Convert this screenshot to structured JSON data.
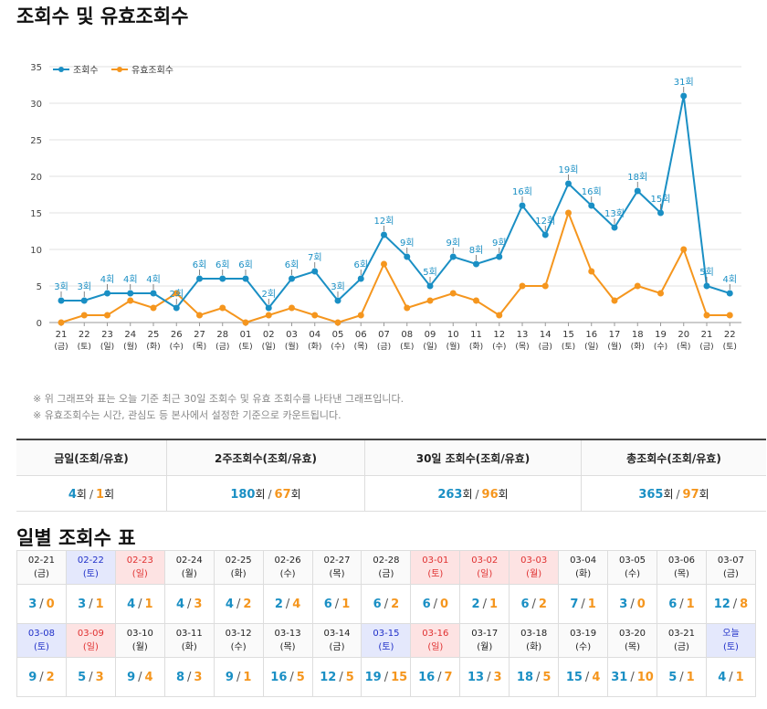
{
  "title": "조회수 및 유효조회수",
  "chart_data": {
    "type": "line",
    "legend": [
      "조회수",
      "유효조회수"
    ],
    "legend_position": "top-left",
    "ylim": [
      0,
      35
    ],
    "yticks": [
      0,
      5,
      10,
      15,
      20,
      25,
      30,
      35
    ],
    "grid": true,
    "categories": [
      {
        "day": "21",
        "dow": "(금)"
      },
      {
        "day": "22",
        "dow": "(토)"
      },
      {
        "day": "23",
        "dow": "(일)"
      },
      {
        "day": "24",
        "dow": "(월)"
      },
      {
        "day": "25",
        "dow": "(화)"
      },
      {
        "day": "26",
        "dow": "(수)"
      },
      {
        "day": "27",
        "dow": "(목)"
      },
      {
        "day": "28",
        "dow": "(금)"
      },
      {
        "day": "01",
        "dow": "(토)"
      },
      {
        "day": "02",
        "dow": "(일)"
      },
      {
        "day": "03",
        "dow": "(월)"
      },
      {
        "day": "04",
        "dow": "(화)"
      },
      {
        "day": "05",
        "dow": "(수)"
      },
      {
        "day": "06",
        "dow": "(목)"
      },
      {
        "day": "07",
        "dow": "(금)"
      },
      {
        "day": "08",
        "dow": "(토)"
      },
      {
        "day": "09",
        "dow": "(일)"
      },
      {
        "day": "10",
        "dow": "(월)"
      },
      {
        "day": "11",
        "dow": "(화)"
      },
      {
        "day": "12",
        "dow": "(수)"
      },
      {
        "day": "13",
        "dow": "(목)"
      },
      {
        "day": "14",
        "dow": "(금)"
      },
      {
        "day": "15",
        "dow": "(토)"
      },
      {
        "day": "16",
        "dow": "(일)"
      },
      {
        "day": "17",
        "dow": "(월)"
      },
      {
        "day": "18",
        "dow": "(화)"
      },
      {
        "day": "19",
        "dow": "(수)"
      },
      {
        "day": "20",
        "dow": "(목)"
      },
      {
        "day": "21",
        "dow": "(금)"
      },
      {
        "day": "22",
        "dow": "(토)"
      }
    ],
    "series": [
      {
        "name": "조회수",
        "color": "#1a8fc4",
        "values": [
          3,
          3,
          4,
          4,
          4,
          2,
          6,
          6,
          6,
          2,
          6,
          7,
          3,
          6,
          12,
          9,
          5,
          9,
          8,
          9,
          16,
          12,
          19,
          16,
          13,
          18,
          15,
          31,
          5,
          4
        ],
        "labels": [
          "3회",
          "3회",
          "4회",
          "4회",
          "4회",
          "2회",
          "6회",
          "6회",
          "6회",
          "2회",
          "6회",
          "7회",
          "3회",
          "6회",
          "12회",
          "9회",
          "5회",
          "9회",
          "8회",
          "9회",
          "16회",
          "12회",
          "19회",
          "16회",
          "13회",
          "18회",
          "15회",
          "31회",
          "5회",
          "4회"
        ]
      },
      {
        "name": "유효조회수",
        "color": "#f5961e",
        "values": [
          0,
          1,
          1,
          3,
          2,
          4,
          1,
          2,
          0,
          1,
          2,
          1,
          0,
          1,
          8,
          2,
          3,
          4,
          3,
          1,
          5,
          5,
          15,
          7,
          3,
          5,
          4,
          10,
          1,
          1
        ]
      }
    ]
  },
  "notes": [
    "※ 위 그래프와 표는 오늘 기준 최근 30일 조회수 및 유효 조회수를 나타낸 그래프입니다.",
    "※ 유효조회수는 시간, 관심도 등 본사에서 설정한 기준으로 카운트됩니다."
  ],
  "summary": {
    "unit": "회",
    "slash": "/",
    "columns": [
      {
        "label": "금일(조회/유효)",
        "views": "4",
        "valid": "1"
      },
      {
        "label": "2주조회수(조회/유효)",
        "views": "180",
        "valid": "67"
      },
      {
        "label": "30일 조회수(조회/유효)",
        "views": "263",
        "valid": "96"
      },
      {
        "label": "총조회수(조회/유효)",
        "views": "365",
        "valid": "97"
      }
    ]
  },
  "daily_title": "일별 조회수 표",
  "daily_rows": [
    [
      {
        "date": "02-21",
        "dow": "(금)",
        "views": "3",
        "valid": "0",
        "type": "normal"
      },
      {
        "date": "02-22",
        "dow": "(토)",
        "views": "3",
        "valid": "1",
        "type": "sat"
      },
      {
        "date": "02-23",
        "dow": "(일)",
        "views": "4",
        "valid": "1",
        "type": "hol"
      },
      {
        "date": "02-24",
        "dow": "(월)",
        "views": "4",
        "valid": "3",
        "type": "normal"
      },
      {
        "date": "02-25",
        "dow": "(화)",
        "views": "4",
        "valid": "2",
        "type": "normal"
      },
      {
        "date": "02-26",
        "dow": "(수)",
        "views": "2",
        "valid": "4",
        "type": "normal"
      },
      {
        "date": "02-27",
        "dow": "(목)",
        "views": "6",
        "valid": "1",
        "type": "normal"
      },
      {
        "date": "02-28",
        "dow": "(금)",
        "views": "6",
        "valid": "2",
        "type": "normal"
      },
      {
        "date": "03-01",
        "dow": "(토)",
        "views": "6",
        "valid": "0",
        "type": "hol"
      },
      {
        "date": "03-02",
        "dow": "(일)",
        "views": "2",
        "valid": "1",
        "type": "hol"
      },
      {
        "date": "03-03",
        "dow": "(월)",
        "views": "6",
        "valid": "2",
        "type": "hol"
      },
      {
        "date": "03-04",
        "dow": "(화)",
        "views": "7",
        "valid": "1",
        "type": "normal"
      },
      {
        "date": "03-05",
        "dow": "(수)",
        "views": "3",
        "valid": "0",
        "type": "normal"
      },
      {
        "date": "03-06",
        "dow": "(목)",
        "views": "6",
        "valid": "1",
        "type": "normal"
      },
      {
        "date": "03-07",
        "dow": "(금)",
        "views": "12",
        "valid": "8",
        "type": "normal"
      }
    ],
    [
      {
        "date": "03-08",
        "dow": "(토)",
        "views": "9",
        "valid": "2",
        "type": "sat"
      },
      {
        "date": "03-09",
        "dow": "(일)",
        "views": "5",
        "valid": "3",
        "type": "hol"
      },
      {
        "date": "03-10",
        "dow": "(월)",
        "views": "9",
        "valid": "4",
        "type": "normal"
      },
      {
        "date": "03-11",
        "dow": "(화)",
        "views": "8",
        "valid": "3",
        "type": "normal"
      },
      {
        "date": "03-12",
        "dow": "(수)",
        "views": "9",
        "valid": "1",
        "type": "normal"
      },
      {
        "date": "03-13",
        "dow": "(목)",
        "views": "16",
        "valid": "5",
        "type": "normal"
      },
      {
        "date": "03-14",
        "dow": "(금)",
        "views": "12",
        "valid": "5",
        "type": "normal"
      },
      {
        "date": "03-15",
        "dow": "(토)",
        "views": "19",
        "valid": "15",
        "type": "sat"
      },
      {
        "date": "03-16",
        "dow": "(일)",
        "views": "16",
        "valid": "7",
        "type": "hol"
      },
      {
        "date": "03-17",
        "dow": "(월)",
        "views": "13",
        "valid": "3",
        "type": "normal"
      },
      {
        "date": "03-18",
        "dow": "(화)",
        "views": "18",
        "valid": "5",
        "type": "normal"
      },
      {
        "date": "03-19",
        "dow": "(수)",
        "views": "15",
        "valid": "4",
        "type": "normal"
      },
      {
        "date": "03-20",
        "dow": "(목)",
        "views": "31",
        "valid": "10",
        "type": "normal"
      },
      {
        "date": "03-21",
        "dow": "(금)",
        "views": "5",
        "valid": "1",
        "type": "normal"
      },
      {
        "date": "오늘",
        "dow": "(토)",
        "views": "4",
        "valid": "1",
        "type": "sat"
      }
    ]
  ]
}
